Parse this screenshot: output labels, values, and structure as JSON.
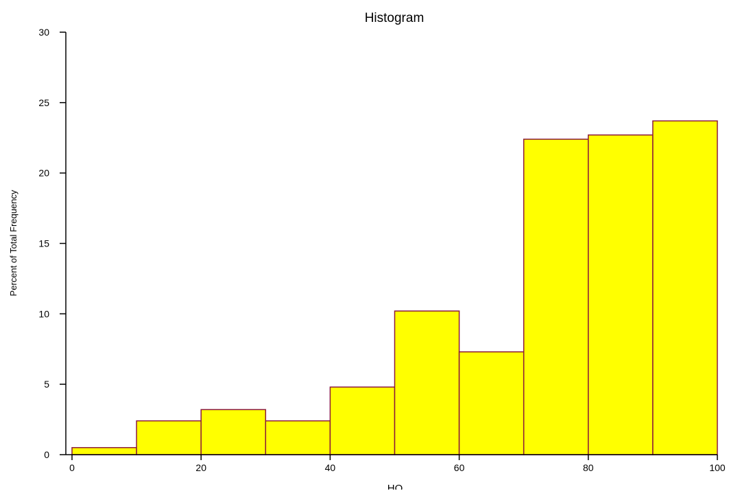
{
  "chart_data": {
    "type": "bar",
    "title": "Histogram",
    "xlabel": "HQ",
    "ylabel": "Percent of Total Frequency",
    "bins": [
      {
        "x0": 0,
        "x1": 10,
        "value": 0.5
      },
      {
        "x0": 10,
        "x1": 20,
        "value": 2.4
      },
      {
        "x0": 20,
        "x1": 30,
        "value": 3.2
      },
      {
        "x0": 30,
        "x1": 40,
        "value": 2.4
      },
      {
        "x0": 40,
        "x1": 50,
        "value": 4.8
      },
      {
        "x0": 50,
        "x1": 60,
        "value": 10.2
      },
      {
        "x0": 60,
        "x1": 70,
        "value": 7.3
      },
      {
        "x0": 70,
        "x1": 80,
        "value": 22.4
      },
      {
        "x0": 80,
        "x1": 90,
        "value": 22.7
      },
      {
        "x0": 90,
        "x1": 100,
        "value": 23.7
      }
    ],
    "xlim": [
      0,
      100
    ],
    "ylim": [
      0,
      30
    ],
    "xticks": [
      "0",
      "20",
      "40",
      "60",
      "80",
      "100"
    ],
    "yticks": [
      "0",
      "5",
      "10",
      "15",
      "20",
      "25",
      "30"
    ],
    "grid": false,
    "legend": false,
    "colors": {
      "fill": "#ffff00",
      "stroke": "#8b1a3a",
      "axis": "#000000"
    }
  }
}
